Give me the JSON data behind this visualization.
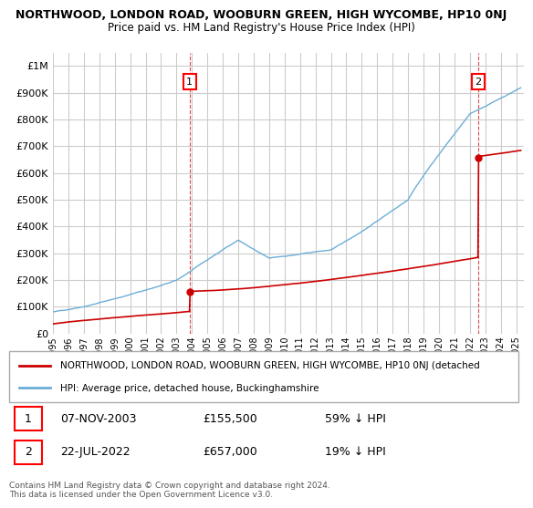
{
  "title": "NORTHWOOD, LONDON ROAD, WOOBURN GREEN, HIGH WYCOMBE, HP10 0NJ",
  "subtitle": "Price paid vs. HM Land Registry's House Price Index (HPI)",
  "ylabel_ticks": [
    "£0",
    "£100K",
    "£200K",
    "£300K",
    "£400K",
    "£500K",
    "£600K",
    "£700K",
    "£800K",
    "£900K",
    "£1M"
  ],
  "ytick_values": [
    0,
    100000,
    200000,
    300000,
    400000,
    500000,
    600000,
    700000,
    800000,
    900000,
    1000000
  ],
  "ylim": [
    0,
    1050000
  ],
  "xlim_start": 1995.0,
  "xlim_end": 2025.5,
  "hpi_color": "#6baed6",
  "price_color": "#cc0000",
  "grid_color": "#cccccc",
  "background_color": "#ffffff",
  "sale1_x": 2003.85,
  "sale1_y": 155500,
  "sale1_label": "1",
  "sale1_date": "07-NOV-2003",
  "sale1_price": "£155,500",
  "sale1_pct": "59% ↓ HPI",
  "sale2_x": 2022.55,
  "sale2_y": 657000,
  "sale2_label": "2",
  "sale2_date": "22-JUL-2022",
  "sale2_price": "£657,000",
  "sale2_pct": "19% ↓ HPI",
  "legend_red_label": "NORTHWOOD, LONDON ROAD, WOOBURN GREEN, HIGH WYCOMBE, HP10 0NJ (detached",
  "legend_blue_label": "HPI: Average price, detached house, Buckinghamshire",
  "footer1": "Contains HM Land Registry data © Crown copyright and database right 2024.",
  "footer2": "This data is licensed under the Open Government Licence v3.0."
}
